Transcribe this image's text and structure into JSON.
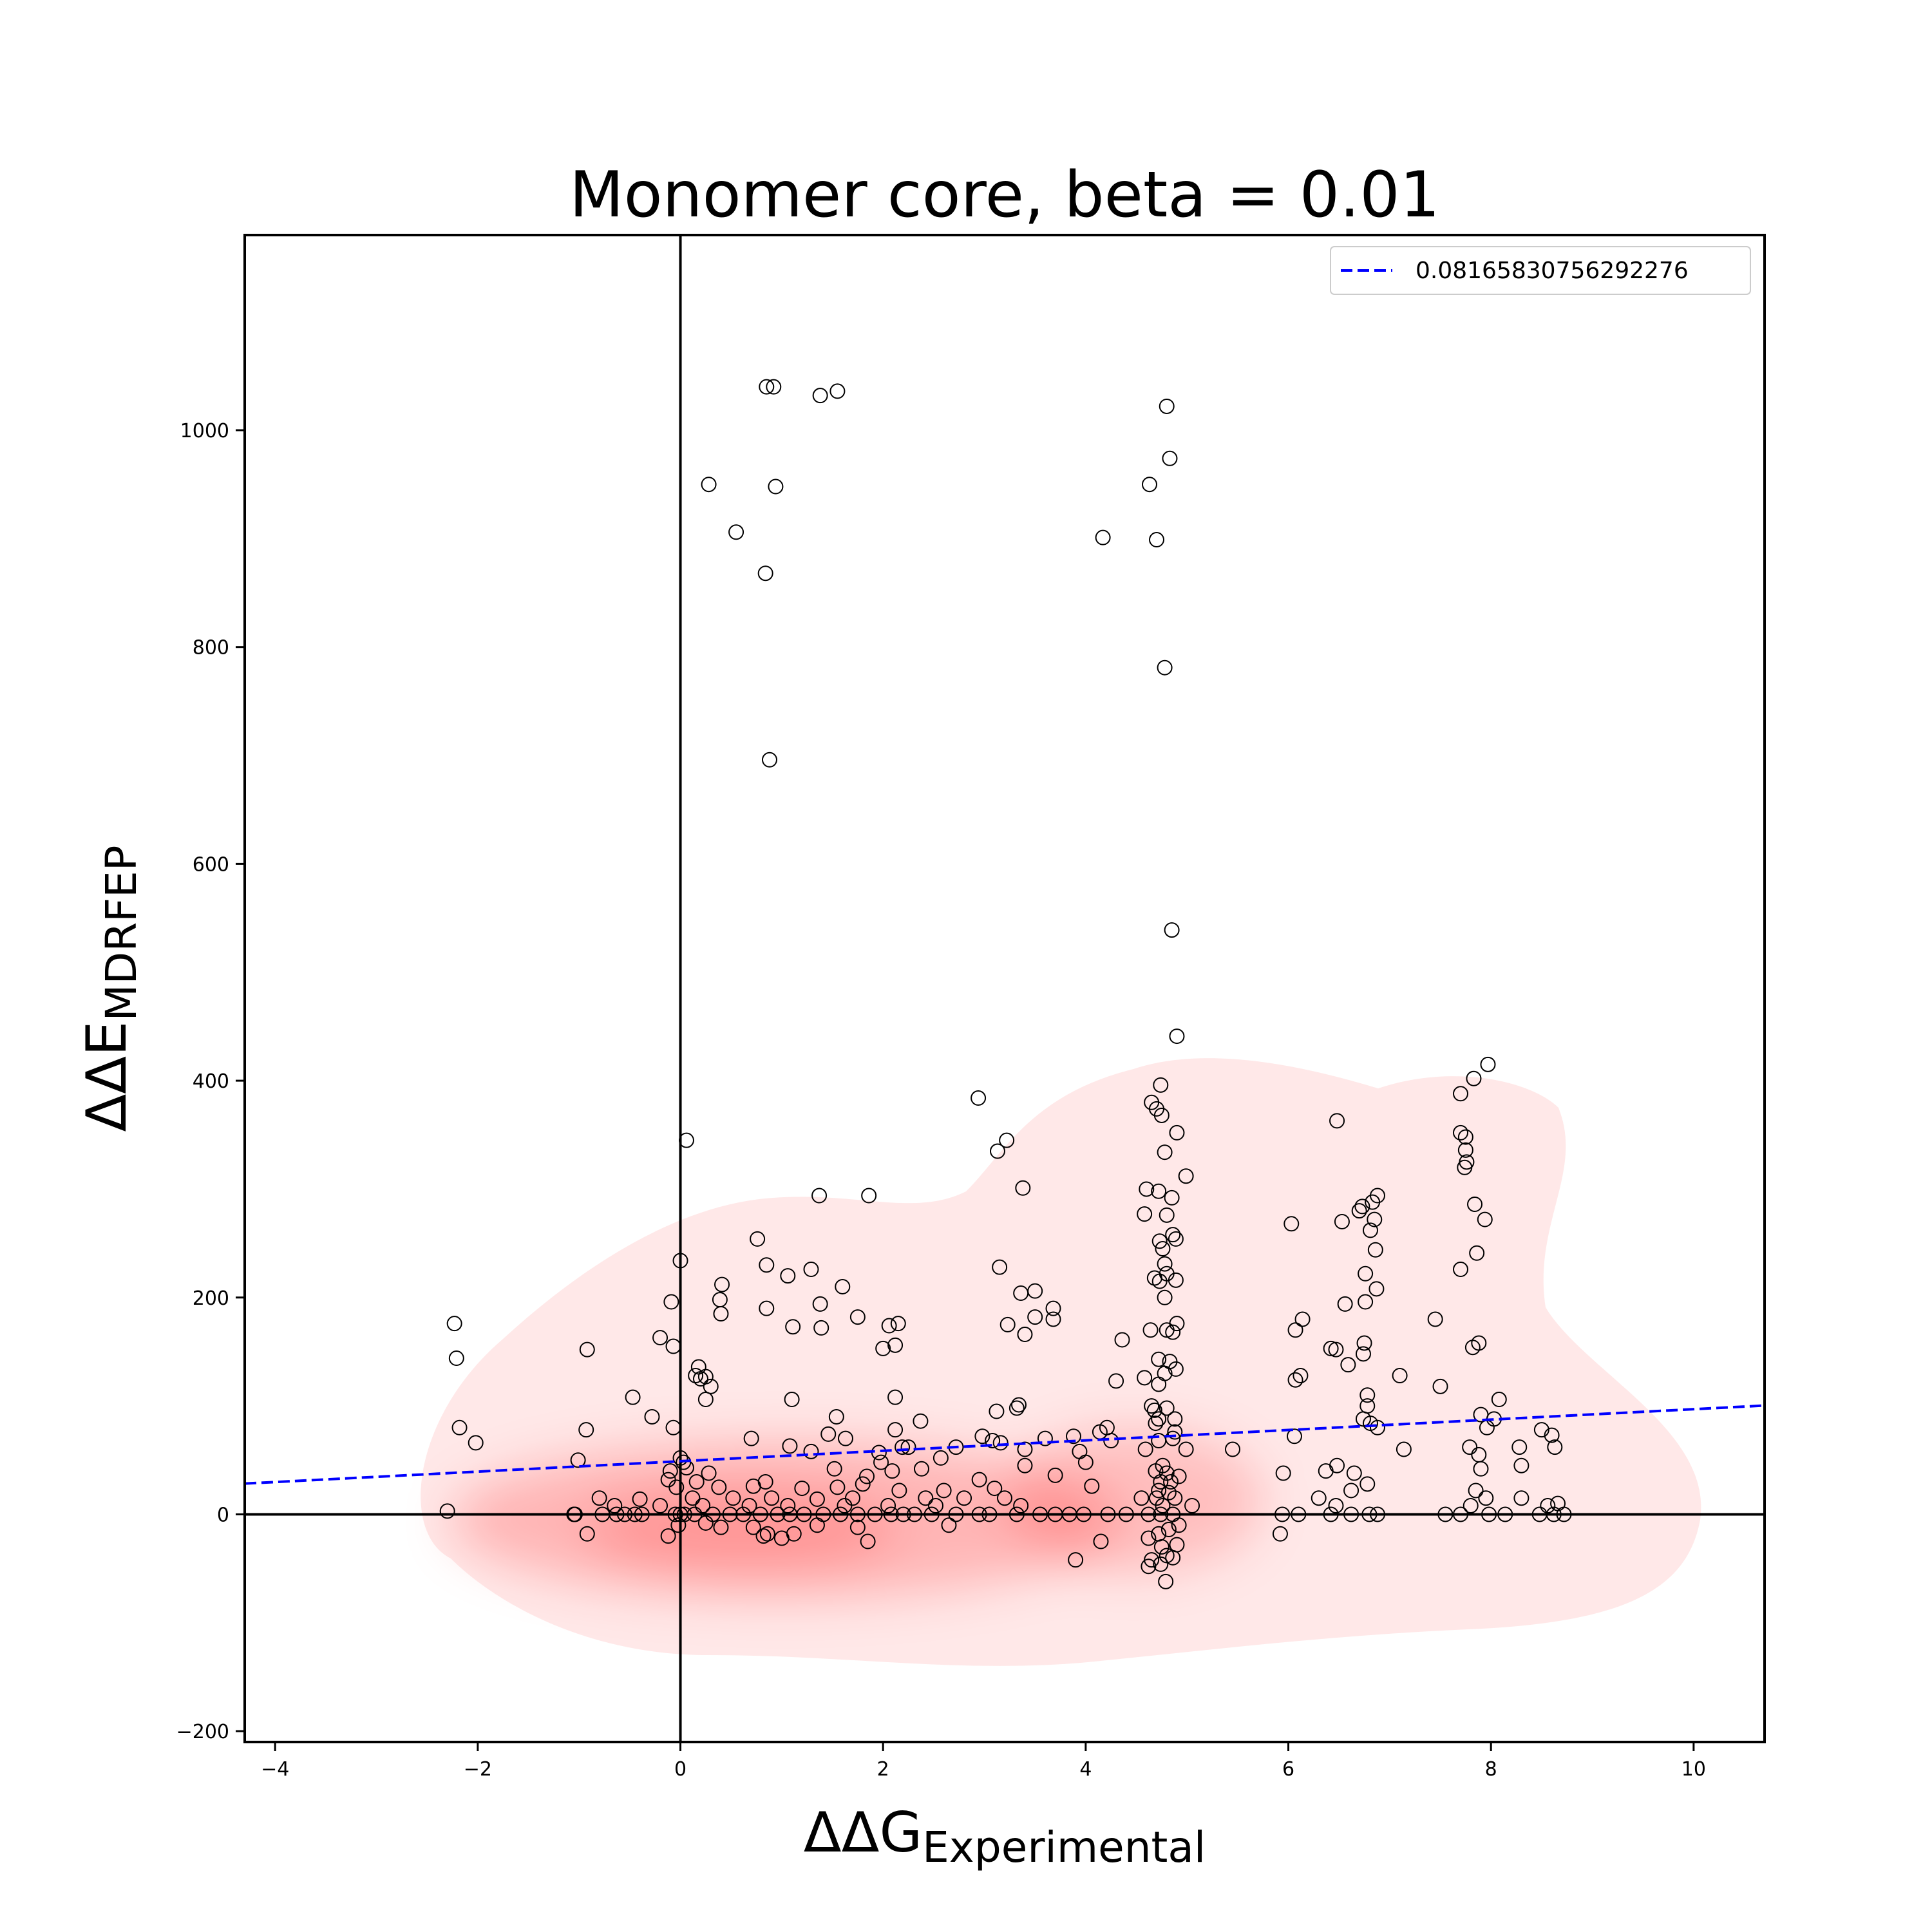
{
  "chart_data": {
    "type": "scatter",
    "title": "Monomer core, beta = 0.01",
    "xlabel": {
      "main": "ΔΔG",
      "sub": "Experimental"
    },
    "ylabel": {
      "main": "ΔΔE",
      "sub": "MDRFEP"
    },
    "xlim": [
      -4.3,
      10.7
    ],
    "ylim": [
      -210,
      1180
    ],
    "xticks": [
      -4,
      -2,
      0,
      2,
      4,
      6,
      8,
      10
    ],
    "xtick_labels": [
      "−4",
      "−2",
      "0",
      "2",
      "4",
      "6",
      "8",
      "10"
    ],
    "yticks": [
      -200,
      0,
      200,
      400,
      600,
      800,
      1000
    ],
    "ytick_labels": [
      "−200",
      "0",
      "200",
      "400",
      "600",
      "800",
      "1000"
    ],
    "grid": false,
    "legend_position": "top-right",
    "colors": {
      "fit_line": "#0000ff",
      "points": "#000000",
      "density": "#ff0000",
      "zero_lines": "#000000"
    },
    "reference_lines": {
      "x": 0,
      "y": 0
    },
    "fit_line": {
      "name": "0.08165830756292276",
      "slope": 4.8,
      "intercept": 49.0,
      "style": "dashed"
    },
    "density": {
      "type": "kde",
      "description_hidden": true
    },
    "points": [
      {
        "x": 0.85,
        "y": 1040
      },
      {
        "x": 0.92,
        "y": 1040
      },
      {
        "x": 1.38,
        "y": 1032
      },
      {
        "x": 1.55,
        "y": 1036
      },
      {
        "x": 4.8,
        "y": 1022
      },
      {
        "x": 4.83,
        "y": 974
      },
      {
        "x": 0.28,
        "y": 950
      },
      {
        "x": 0.94,
        "y": 948
      },
      {
        "x": 4.63,
        "y": 950
      },
      {
        "x": 0.55,
        "y": 906
      },
      {
        "x": 4.17,
        "y": 901
      },
      {
        "x": 4.7,
        "y": 899
      },
      {
        "x": 0.84,
        "y": 868
      },
      {
        "x": 4.78,
        "y": 781
      },
      {
        "x": 0.88,
        "y": 696
      },
      {
        "x": 4.85,
        "y": 539
      },
      {
        "x": 4.9,
        "y": 441
      },
      {
        "x": 7.97,
        "y": 415
      },
      {
        "x": 7.83,
        "y": 402
      },
      {
        "x": 4.74,
        "y": 396
      },
      {
        "x": 7.7,
        "y": 388
      },
      {
        "x": 2.94,
        "y": 384
      },
      {
        "x": 4.65,
        "y": 380
      },
      {
        "x": 4.7,
        "y": 374
      },
      {
        "x": 4.75,
        "y": 368
      },
      {
        "x": 6.48,
        "y": 363
      },
      {
        "x": 4.9,
        "y": 352
      },
      {
        "x": 7.7,
        "y": 352
      },
      {
        "x": 0.06,
        "y": 345
      },
      {
        "x": 3.22,
        "y": 345
      },
      {
        "x": 7.75,
        "y": 348
      },
      {
        "x": 7.75,
        "y": 336
      },
      {
        "x": 3.13,
        "y": 335
      },
      {
        "x": 4.78,
        "y": 334
      },
      {
        "x": 7.76,
        "y": 325
      },
      {
        "x": 7.74,
        "y": 320
      },
      {
        "x": 4.99,
        "y": 312
      },
      {
        "x": 3.38,
        "y": 301
      },
      {
        "x": 4.6,
        "y": 300
      },
      {
        "x": 4.72,
        "y": 298
      },
      {
        "x": 1.37,
        "y": 294
      },
      {
        "x": 1.86,
        "y": 294
      },
      {
        "x": 6.88,
        "y": 294
      },
      {
        "x": 4.85,
        "y": 292
      },
      {
        "x": 7.84,
        "y": 286
      },
      {
        "x": 6.83,
        "y": 288
      },
      {
        "x": 6.73,
        "y": 284
      },
      {
        "x": 6.7,
        "y": 280
      },
      {
        "x": 4.58,
        "y": 277
      },
      {
        "x": 4.8,
        "y": 276
      },
      {
        "x": 6.85,
        "y": 272
      },
      {
        "x": 7.94,
        "y": 272
      },
      {
        "x": 6.03,
        "y": 268
      },
      {
        "x": 6.53,
        "y": 270
      },
      {
        "x": 6.81,
        "y": 262
      },
      {
        "x": 4.86,
        "y": 258
      },
      {
        "x": 0.76,
        "y": 254
      },
      {
        "x": 4.73,
        "y": 252
      },
      {
        "x": 4.89,
        "y": 254
      },
      {
        "x": 4.76,
        "y": 245
      },
      {
        "x": 6.86,
        "y": 244
      },
      {
        "x": 7.86,
        "y": 241
      },
      {
        "x": 0.0,
        "y": 234
      },
      {
        "x": 4.78,
        "y": 231
      },
      {
        "x": 0.85,
        "y": 230
      },
      {
        "x": 3.15,
        "y": 228
      },
      {
        "x": 1.29,
        "y": 226
      },
      {
        "x": 7.7,
        "y": 226
      },
      {
        "x": 4.8,
        "y": 222
      },
      {
        "x": 1.06,
        "y": 220
      },
      {
        "x": 6.76,
        "y": 222
      },
      {
        "x": 4.68,
        "y": 218
      },
      {
        "x": 4.89,
        "y": 216
      },
      {
        "x": 4.73,
        "y": 215
      },
      {
        "x": 0.41,
        "y": 212
      },
      {
        "x": 1.6,
        "y": 210
      },
      {
        "x": 6.87,
        "y": 208
      },
      {
        "x": 3.36,
        "y": 204
      },
      {
        "x": 3.5,
        "y": 206
      },
      {
        "x": 4.78,
        "y": 200
      },
      {
        "x": 0.39,
        "y": 198
      },
      {
        "x": -0.09,
        "y": 196
      },
      {
        "x": 1.38,
        "y": 194
      },
      {
        "x": 6.56,
        "y": 194
      },
      {
        "x": 6.76,
        "y": 196
      },
      {
        "x": 0.85,
        "y": 190
      },
      {
        "x": 3.68,
        "y": 190
      },
      {
        "x": 0.4,
        "y": 185
      },
      {
        "x": 1.75,
        "y": 182
      },
      {
        "x": 3.5,
        "y": 182
      },
      {
        "x": 6.14,
        "y": 180
      },
      {
        "x": 7.45,
        "y": 180
      },
      {
        "x": 3.68,
        "y": 180
      },
      {
        "x": -2.23,
        "y": 176
      },
      {
        "x": 2.15,
        "y": 176
      },
      {
        "x": 2.06,
        "y": 174
      },
      {
        "x": 1.39,
        "y": 172
      },
      {
        "x": 1.11,
        "y": 173
      },
      {
        "x": 3.23,
        "y": 175
      },
      {
        "x": 4.9,
        "y": 176
      },
      {
        "x": 4.64,
        "y": 170
      },
      {
        "x": 4.8,
        "y": 170
      },
      {
        "x": 4.86,
        "y": 168
      },
      {
        "x": 6.07,
        "y": 170
      },
      {
        "x": 3.4,
        "y": 166
      },
      {
        "x": -0.2,
        "y": 163
      },
      {
        "x": 4.36,
        "y": 161
      },
      {
        "x": 6.75,
        "y": 158
      },
      {
        "x": 7.88,
        "y": 158
      },
      {
        "x": -0.07,
        "y": 155
      },
      {
        "x": 2.12,
        "y": 156
      },
      {
        "x": 2.0,
        "y": 153
      },
      {
        "x": 6.42,
        "y": 153
      },
      {
        "x": 7.82,
        "y": 154
      },
      {
        "x": -0.92,
        "y": 152
      },
      {
        "x": 6.47,
        "y": 152
      },
      {
        "x": 6.74,
        "y": 148
      },
      {
        "x": -2.21,
        "y": 144
      },
      {
        "x": 4.72,
        "y": 143
      },
      {
        "x": 4.83,
        "y": 141
      },
      {
        "x": 4.89,
        "y": 134
      },
      {
        "x": 6.59,
        "y": 138
      },
      {
        "x": 0.18,
        "y": 136
      },
      {
        "x": 4.78,
        "y": 130
      },
      {
        "x": 0.15,
        "y": 128
      },
      {
        "x": 0.25,
        "y": 127
      },
      {
        "x": 6.12,
        "y": 128
      },
      {
        "x": 7.1,
        "y": 128
      },
      {
        "x": 4.58,
        "y": 126
      },
      {
        "x": 6.07,
        "y": 124
      },
      {
        "x": 0.2,
        "y": 125
      },
      {
        "x": 4.3,
        "y": 123
      },
      {
        "x": 4.72,
        "y": 120
      },
      {
        "x": 0.3,
        "y": 118
      },
      {
        "x": 7.5,
        "y": 118
      },
      {
        "x": -0.47,
        "y": 108
      },
      {
        "x": 0.25,
        "y": 106
      },
      {
        "x": 1.1,
        "y": 106
      },
      {
        "x": 2.12,
        "y": 108
      },
      {
        "x": 6.78,
        "y": 110
      },
      {
        "x": 8.08,
        "y": 106
      },
      {
        "x": 4.65,
        "y": 100
      },
      {
        "x": 3.34,
        "y": 101
      },
      {
        "x": 4.68,
        "y": 96
      },
      {
        "x": 4.8,
        "y": 98
      },
      {
        "x": 3.12,
        "y": 95
      },
      {
        "x": 6.78,
        "y": 100
      },
      {
        "x": 3.32,
        "y": 98
      },
      {
        "x": -0.28,
        "y": 90
      },
      {
        "x": 1.54,
        "y": 90
      },
      {
        "x": 4.72,
        "y": 88
      },
      {
        "x": 4.88,
        "y": 88
      },
      {
        "x": 7.9,
        "y": 92
      },
      {
        "x": 8.03,
        "y": 88
      },
      {
        "x": 2.37,
        "y": 86
      },
      {
        "x": 4.69,
        "y": 84
      },
      {
        "x": 6.81,
        "y": 84
      },
      {
        "x": 6.74,
        "y": 88
      },
      {
        "x": -2.18,
        "y": 80
      },
      {
        "x": -0.93,
        "y": 78
      },
      {
        "x": -0.07,
        "y": 80
      },
      {
        "x": 1.46,
        "y": 74
      },
      {
        "x": 2.12,
        "y": 78
      },
      {
        "x": 4.21,
        "y": 80
      },
      {
        "x": 4.14,
        "y": 76
      },
      {
        "x": 6.88,
        "y": 80
      },
      {
        "x": 7.96,
        "y": 80
      },
      {
        "x": 8.5,
        "y": 78
      },
      {
        "x": 8.6,
        "y": 73
      },
      {
        "x": 4.88,
        "y": 76
      },
      {
        "x": 2.98,
        "y": 72
      },
      {
        "x": 3.6,
        "y": 70
      },
      {
        "x": 3.88,
        "y": 72
      },
      {
        "x": 0.7,
        "y": 70
      },
      {
        "x": 1.63,
        "y": 70
      },
      {
        "x": 6.06,
        "y": 72
      },
      {
        "x": 3.08,
        "y": 68
      },
      {
        "x": -2.02,
        "y": 66
      },
      {
        "x": 3.16,
        "y": 66
      },
      {
        "x": 4.25,
        "y": 68
      },
      {
        "x": 4.72,
        "y": 68
      },
      {
        "x": 4.86,
        "y": 70
      },
      {
        "x": 1.08,
        "y": 63
      },
      {
        "x": 2.25,
        "y": 62
      },
      {
        "x": 2.19,
        "y": 62
      },
      {
        "x": 2.72,
        "y": 62
      },
      {
        "x": 5.45,
        "y": 60
      },
      {
        "x": 8.28,
        "y": 62
      },
      {
        "x": 8.63,
        "y": 62
      },
      {
        "x": 1.29,
        "y": 58
      },
      {
        "x": 1.96,
        "y": 57
      },
      {
        "x": 3.4,
        "y": 60
      },
      {
        "x": 3.94,
        "y": 58
      },
      {
        "x": 4.59,
        "y": 60
      },
      {
        "x": 7.14,
        "y": 60
      },
      {
        "x": 7.79,
        "y": 62
      },
      {
        "x": 7.88,
        "y": 55
      },
      {
        "x": 2.57,
        "y": 52
      },
      {
        "x": 0.0,
        "y": 52
      },
      {
        "x": 4.99,
        "y": 60
      },
      {
        "x": -1.01,
        "y": 50
      },
      {
        "x": 0.03,
        "y": 48
      },
      {
        "x": 1.98,
        "y": 48
      },
      {
        "x": 2.38,
        "y": 42
      },
      {
        "x": 3.4,
        "y": 45
      },
      {
        "x": 4.0,
        "y": 48
      },
      {
        "x": 4.76,
        "y": 45
      },
      {
        "x": 6.48,
        "y": 45
      },
      {
        "x": 8.3,
        "y": 45
      },
      {
        "x": -0.1,
        "y": 40
      },
      {
        "x": 0.06,
        "y": 43
      },
      {
        "x": 1.52,
        "y": 42
      },
      {
        "x": 2.09,
        "y": 40
      },
      {
        "x": 4.69,
        "y": 40
      },
      {
        "x": 4.8,
        "y": 38
      },
      {
        "x": 6.37,
        "y": 40
      },
      {
        "x": 6.65,
        "y": 38
      },
      {
        "x": 7.9,
        "y": 42
      },
      {
        "x": 0.28,
        "y": 38
      },
      {
        "x": 1.84,
        "y": 35
      },
      {
        "x": 3.7,
        "y": 36
      },
      {
        "x": 4.92,
        "y": 35
      },
      {
        "x": 5.95,
        "y": 38
      },
      {
        "x": -0.12,
        "y": 32
      },
      {
        "x": 0.16,
        "y": 30
      },
      {
        "x": 0.84,
        "y": 30
      },
      {
        "x": 1.8,
        "y": 28
      },
      {
        "x": 2.95,
        "y": 32
      },
      {
        "x": 4.74,
        "y": 30
      },
      {
        "x": 4.84,
        "y": 30
      },
      {
        "x": 6.78,
        "y": 28
      },
      {
        "x": -0.04,
        "y": 25
      },
      {
        "x": 0.38,
        "y": 25
      },
      {
        "x": 0.72,
        "y": 26
      },
      {
        "x": 1.2,
        "y": 24
      },
      {
        "x": 1.55,
        "y": 25
      },
      {
        "x": 2.16,
        "y": 22
      },
      {
        "x": 2.6,
        "y": 22
      },
      {
        "x": 3.1,
        "y": 24
      },
      {
        "x": 4.06,
        "y": 26
      },
      {
        "x": 4.72,
        "y": 22
      },
      {
        "x": 4.82,
        "y": 20
      },
      {
        "x": 6.62,
        "y": 22
      },
      {
        "x": 7.85,
        "y": 22
      },
      {
        "x": -0.8,
        "y": 15
      },
      {
        "x": -0.4,
        "y": 14
      },
      {
        "x": 0.12,
        "y": 15
      },
      {
        "x": 0.52,
        "y": 15
      },
      {
        "x": 0.9,
        "y": 15
      },
      {
        "x": 1.35,
        "y": 14
      },
      {
        "x": 1.7,
        "y": 15
      },
      {
        "x": 2.42,
        "y": 15
      },
      {
        "x": 2.8,
        "y": 15
      },
      {
        "x": 3.2,
        "y": 15
      },
      {
        "x": 4.55,
        "y": 15
      },
      {
        "x": 4.7,
        "y": 15
      },
      {
        "x": 4.88,
        "y": 15
      },
      {
        "x": 6.3,
        "y": 15
      },
      {
        "x": 7.95,
        "y": 15
      },
      {
        "x": 8.3,
        "y": 15
      },
      {
        "x": -0.65,
        "y": 8
      },
      {
        "x": -0.2,
        "y": 8
      },
      {
        "x": 0.22,
        "y": 8
      },
      {
        "x": 0.68,
        "y": 8
      },
      {
        "x": 1.06,
        "y": 8
      },
      {
        "x": 1.62,
        "y": 8
      },
      {
        "x": 2.05,
        "y": 8
      },
      {
        "x": 2.52,
        "y": 8
      },
      {
        "x": 3.36,
        "y": 8
      },
      {
        "x": 4.76,
        "y": 8
      },
      {
        "x": 5.05,
        "y": 8
      },
      {
        "x": 6.47,
        "y": 8
      },
      {
        "x": 7.8,
        "y": 8
      },
      {
        "x": 8.56,
        "y": 8
      },
      {
        "x": 8.66,
        "y": 10
      },
      {
        "x": -2.3,
        "y": 3
      },
      {
        "x": -1.04,
        "y": 0
      },
      {
        "x": -1.05,
        "y": 0
      },
      {
        "x": -0.77,
        "y": 0
      },
      {
        "x": -0.63,
        "y": 0
      },
      {
        "x": -0.55,
        "y": 0
      },
      {
        "x": -0.45,
        "y": 0
      },
      {
        "x": -0.38,
        "y": 0
      },
      {
        "x": -0.05,
        "y": 0
      },
      {
        "x": 0.0,
        "y": 0
      },
      {
        "x": 0.04,
        "y": 0
      },
      {
        "x": 0.14,
        "y": 0
      },
      {
        "x": 0.32,
        "y": 0
      },
      {
        "x": 0.49,
        "y": 0
      },
      {
        "x": 0.62,
        "y": 0
      },
      {
        "x": 0.79,
        "y": 0
      },
      {
        "x": 0.96,
        "y": 0
      },
      {
        "x": 1.08,
        "y": 0
      },
      {
        "x": 1.22,
        "y": 0
      },
      {
        "x": 1.41,
        "y": 0
      },
      {
        "x": 1.58,
        "y": 0
      },
      {
        "x": 1.75,
        "y": 0
      },
      {
        "x": 1.92,
        "y": 0
      },
      {
        "x": 2.08,
        "y": 0
      },
      {
        "x": 2.2,
        "y": 0
      },
      {
        "x": 2.31,
        "y": 0
      },
      {
        "x": 2.48,
        "y": 0
      },
      {
        "x": 2.72,
        "y": 0
      },
      {
        "x": 2.95,
        "y": 0
      },
      {
        "x": 3.05,
        "y": 0
      },
      {
        "x": 3.32,
        "y": 0
      },
      {
        "x": 3.55,
        "y": 0
      },
      {
        "x": 3.7,
        "y": 0
      },
      {
        "x": 3.84,
        "y": 0
      },
      {
        "x": 3.98,
        "y": 0
      },
      {
        "x": 4.22,
        "y": 0
      },
      {
        "x": 4.4,
        "y": 0
      },
      {
        "x": 4.62,
        "y": 0
      },
      {
        "x": 4.74,
        "y": 0
      },
      {
        "x": 4.86,
        "y": 0
      },
      {
        "x": 5.94,
        "y": 0
      },
      {
        "x": 6.1,
        "y": 0
      },
      {
        "x": 6.42,
        "y": 0
      },
      {
        "x": 6.62,
        "y": 0
      },
      {
        "x": 6.8,
        "y": 0
      },
      {
        "x": 6.88,
        "y": 0
      },
      {
        "x": 7.55,
        "y": 0
      },
      {
        "x": 7.7,
        "y": 0
      },
      {
        "x": 7.98,
        "y": 0
      },
      {
        "x": 8.14,
        "y": 0
      },
      {
        "x": 8.48,
        "y": 0
      },
      {
        "x": 8.62,
        "y": 0
      },
      {
        "x": 8.72,
        "y": 0
      },
      {
        "x": -0.92,
        "y": -18
      },
      {
        "x": -0.02,
        "y": -10
      },
      {
        "x": 0.25,
        "y": -8
      },
      {
        "x": 0.4,
        "y": -12
      },
      {
        "x": 0.72,
        "y": -12
      },
      {
        "x": 0.86,
        "y": -18
      },
      {
        "x": 1.0,
        "y": -22
      },
      {
        "x": 1.12,
        "y": -18
      },
      {
        "x": 1.35,
        "y": -10
      },
      {
        "x": 1.75,
        "y": -12
      },
      {
        "x": 2.65,
        "y": -10
      },
      {
        "x": 4.62,
        "y": -22
      },
      {
        "x": 4.72,
        "y": -18
      },
      {
        "x": 4.82,
        "y": -14
      },
      {
        "x": 4.92,
        "y": -10
      },
      {
        "x": 5.92,
        "y": -18
      },
      {
        "x": -0.12,
        "y": -20
      },
      {
        "x": 0.82,
        "y": -20
      },
      {
        "x": 1.85,
        "y": -25
      },
      {
        "x": 4.15,
        "y": -25
      },
      {
        "x": 4.75,
        "y": -30
      },
      {
        "x": 4.9,
        "y": -28
      },
      {
        "x": 4.8,
        "y": -38
      },
      {
        "x": 4.65,
        "y": -42
      },
      {
        "x": 3.9,
        "y": -42
      },
      {
        "x": 4.62,
        "y": -48
      },
      {
        "x": 4.74,
        "y": -46
      },
      {
        "x": 4.86,
        "y": -40
      },
      {
        "x": 4.79,
        "y": -62
      }
    ]
  }
}
